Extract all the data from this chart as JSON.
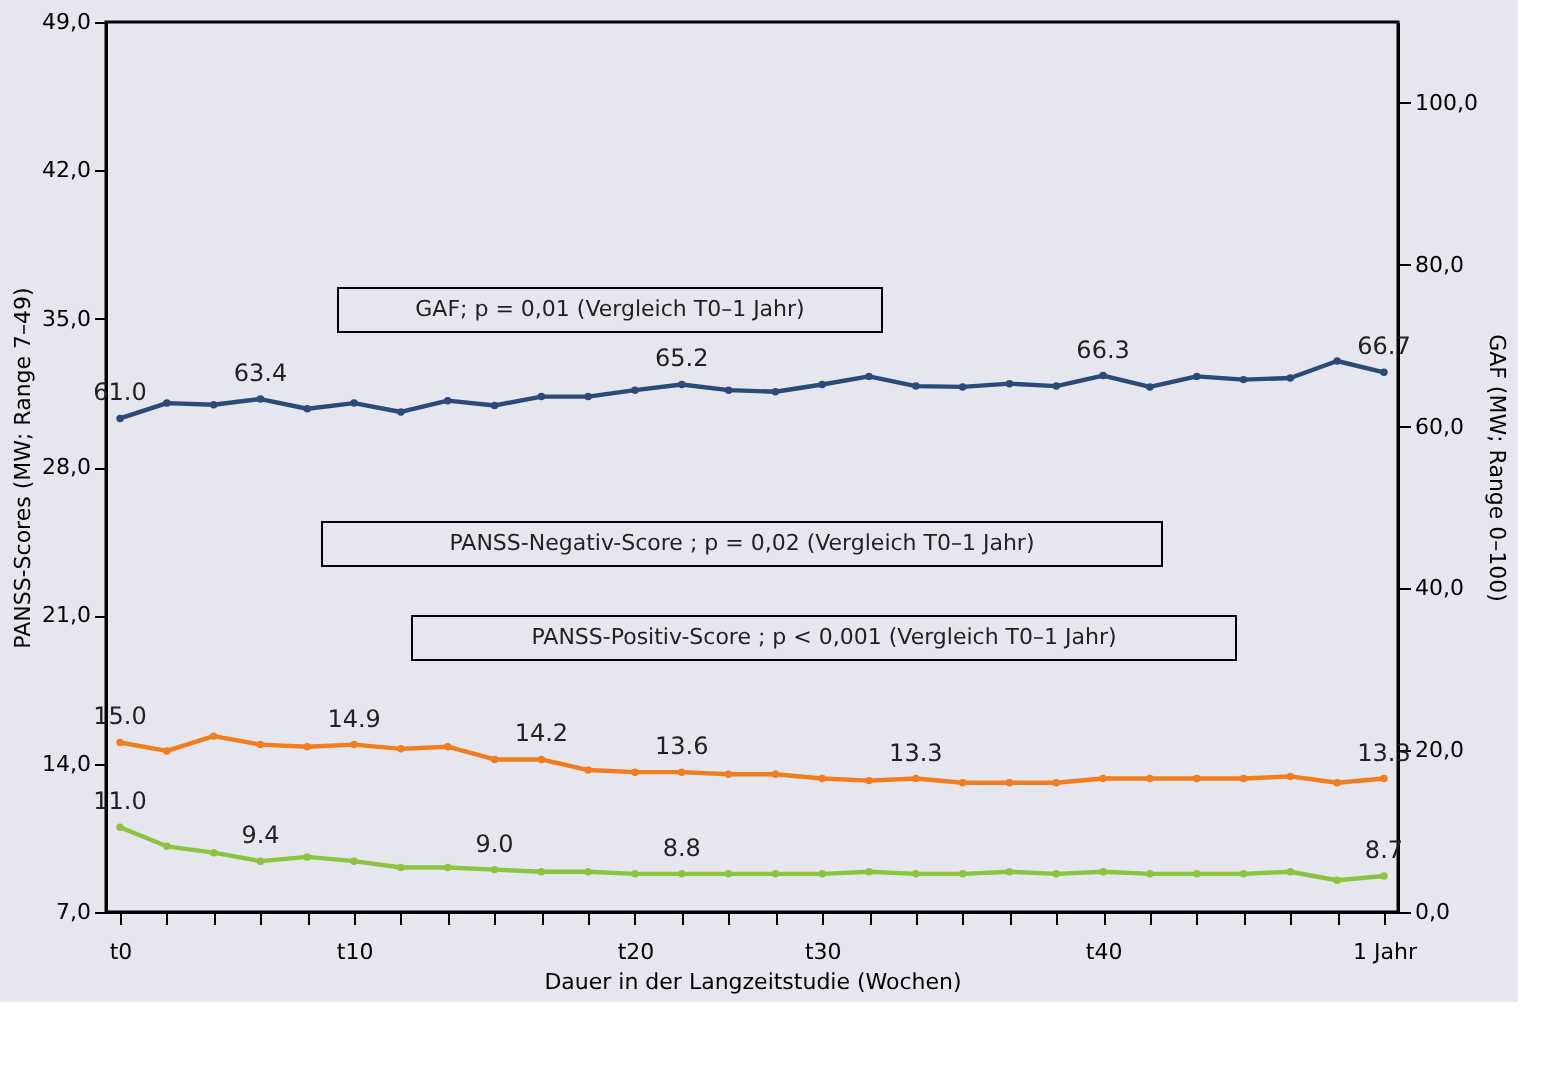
{
  "chart_data": {
    "type": "line",
    "xlabel": "Dauer in der Langzeitstudie (Wochen)",
    "ylabel": "PANSS-Scores (MW; Range 7–49)",
    "y2label": "GAF (MW; Range 0–100)",
    "categories": [
      "t0",
      null,
      null,
      null,
      null,
      "t10",
      null,
      null,
      null,
      null,
      null,
      "t20",
      null,
      null,
      null,
      "t30",
      null,
      null,
      null,
      null,
      null,
      "t40",
      null,
      null,
      null,
      null,
      null,
      "1 Jahr"
    ],
    "series": [
      {
        "color": "#2c4a78",
        "axis": "y2",
        "values": [
          61.0,
          62.9,
          62.7,
          63.4,
          62.2,
          62.9,
          61.8,
          63.2,
          62.6,
          63.7,
          63.7,
          64.5,
          65.2,
          64.5,
          64.3,
          65.2,
          66.2,
          65.0,
          64.9,
          65.3,
          65.0,
          66.3,
          64.9,
          66.2,
          65.8,
          66.0,
          68.1,
          66.7
        ],
        "value_labels": [
          "61.0",
          null,
          null,
          "63.4",
          null,
          null,
          null,
          null,
          null,
          null,
          null,
          null,
          "65.2",
          null,
          null,
          null,
          null,
          null,
          null,
          null,
          null,
          "66.3",
          null,
          null,
          null,
          null,
          null,
          "66.7"
        ]
      },
      {
        "color": "#f07d1e",
        "values": [
          15.0,
          14.6,
          15.3,
          14.9,
          14.8,
          14.9,
          14.7,
          14.8,
          14.2,
          14.2,
          13.7,
          13.6,
          13.6,
          13.5,
          13.5,
          13.3,
          13.2,
          13.3,
          13.1,
          13.1,
          13.1,
          13.3,
          13.3,
          13.3,
          13.3,
          13.4,
          13.1,
          13.3
        ],
        "value_labels": [
          "15.0",
          null,
          null,
          null,
          null,
          "14.9",
          null,
          null,
          null,
          "14.2",
          null,
          null,
          "13.6",
          null,
          null,
          null,
          null,
          "13.3",
          null,
          null,
          null,
          null,
          null,
          null,
          null,
          null,
          null,
          "13.3"
        ]
      },
      {
        "color": "#8cc43f",
        "values": [
          11.0,
          10.1,
          9.8,
          9.4,
          9.6,
          9.4,
          9.1,
          9.1,
          9.0,
          8.9,
          8.9,
          8.8,
          8.8,
          8.8,
          8.8,
          8.8,
          8.9,
          8.8,
          8.8,
          8.9,
          8.8,
          8.9,
          8.8,
          8.8,
          8.8,
          8.9,
          8.5,
          8.7
        ],
        "value_labels": [
          "11.0",
          null,
          null,
          "9.4",
          null,
          null,
          null,
          null,
          "9.0",
          null,
          null,
          null,
          "8.8",
          null,
          null,
          null,
          null,
          null,
          null,
          null,
          null,
          null,
          null,
          null,
          null,
          null,
          null,
          "8.7"
        ]
      }
    ],
    "ylim": [
      7,
      49
    ],
    "yticks": [
      {
        "value": 7,
        "label": "7,0"
      },
      {
        "value": 14,
        "label": "14,0"
      },
      {
        "value": 21,
        "label": "21,0"
      },
      {
        "value": 28,
        "label": "28,0"
      },
      {
        "value": 35,
        "label": "35,0"
      },
      {
        "value": 42,
        "label": "42,0"
      },
      {
        "value": 49,
        "label": "49,0"
      }
    ],
    "y2lim": [
      0,
      110
    ],
    "y2ticks": [
      {
        "value": 0,
        "label": "0,0"
      },
      {
        "value": 20,
        "label": "20,0"
      },
      {
        "value": 40,
        "label": "40,0"
      },
      {
        "value": 60,
        "label": "60,0"
      },
      {
        "value": 80,
        "label": "80,0"
      },
      {
        "value": 100,
        "label": "100,0"
      }
    ],
    "annotations": [
      "GAF; p = 0,01 (Vergleich T0–1 Jahr)",
      "PANSS-Negativ-Score ; p = 0,02 (Vergleich T0–1 Jahr)",
      "PANSS-Positiv-Score ; p < 0,001 (Vergleich T0–1 Jahr)"
    ],
    "grid": false,
    "marker": "circle",
    "line_style": "solid"
  }
}
